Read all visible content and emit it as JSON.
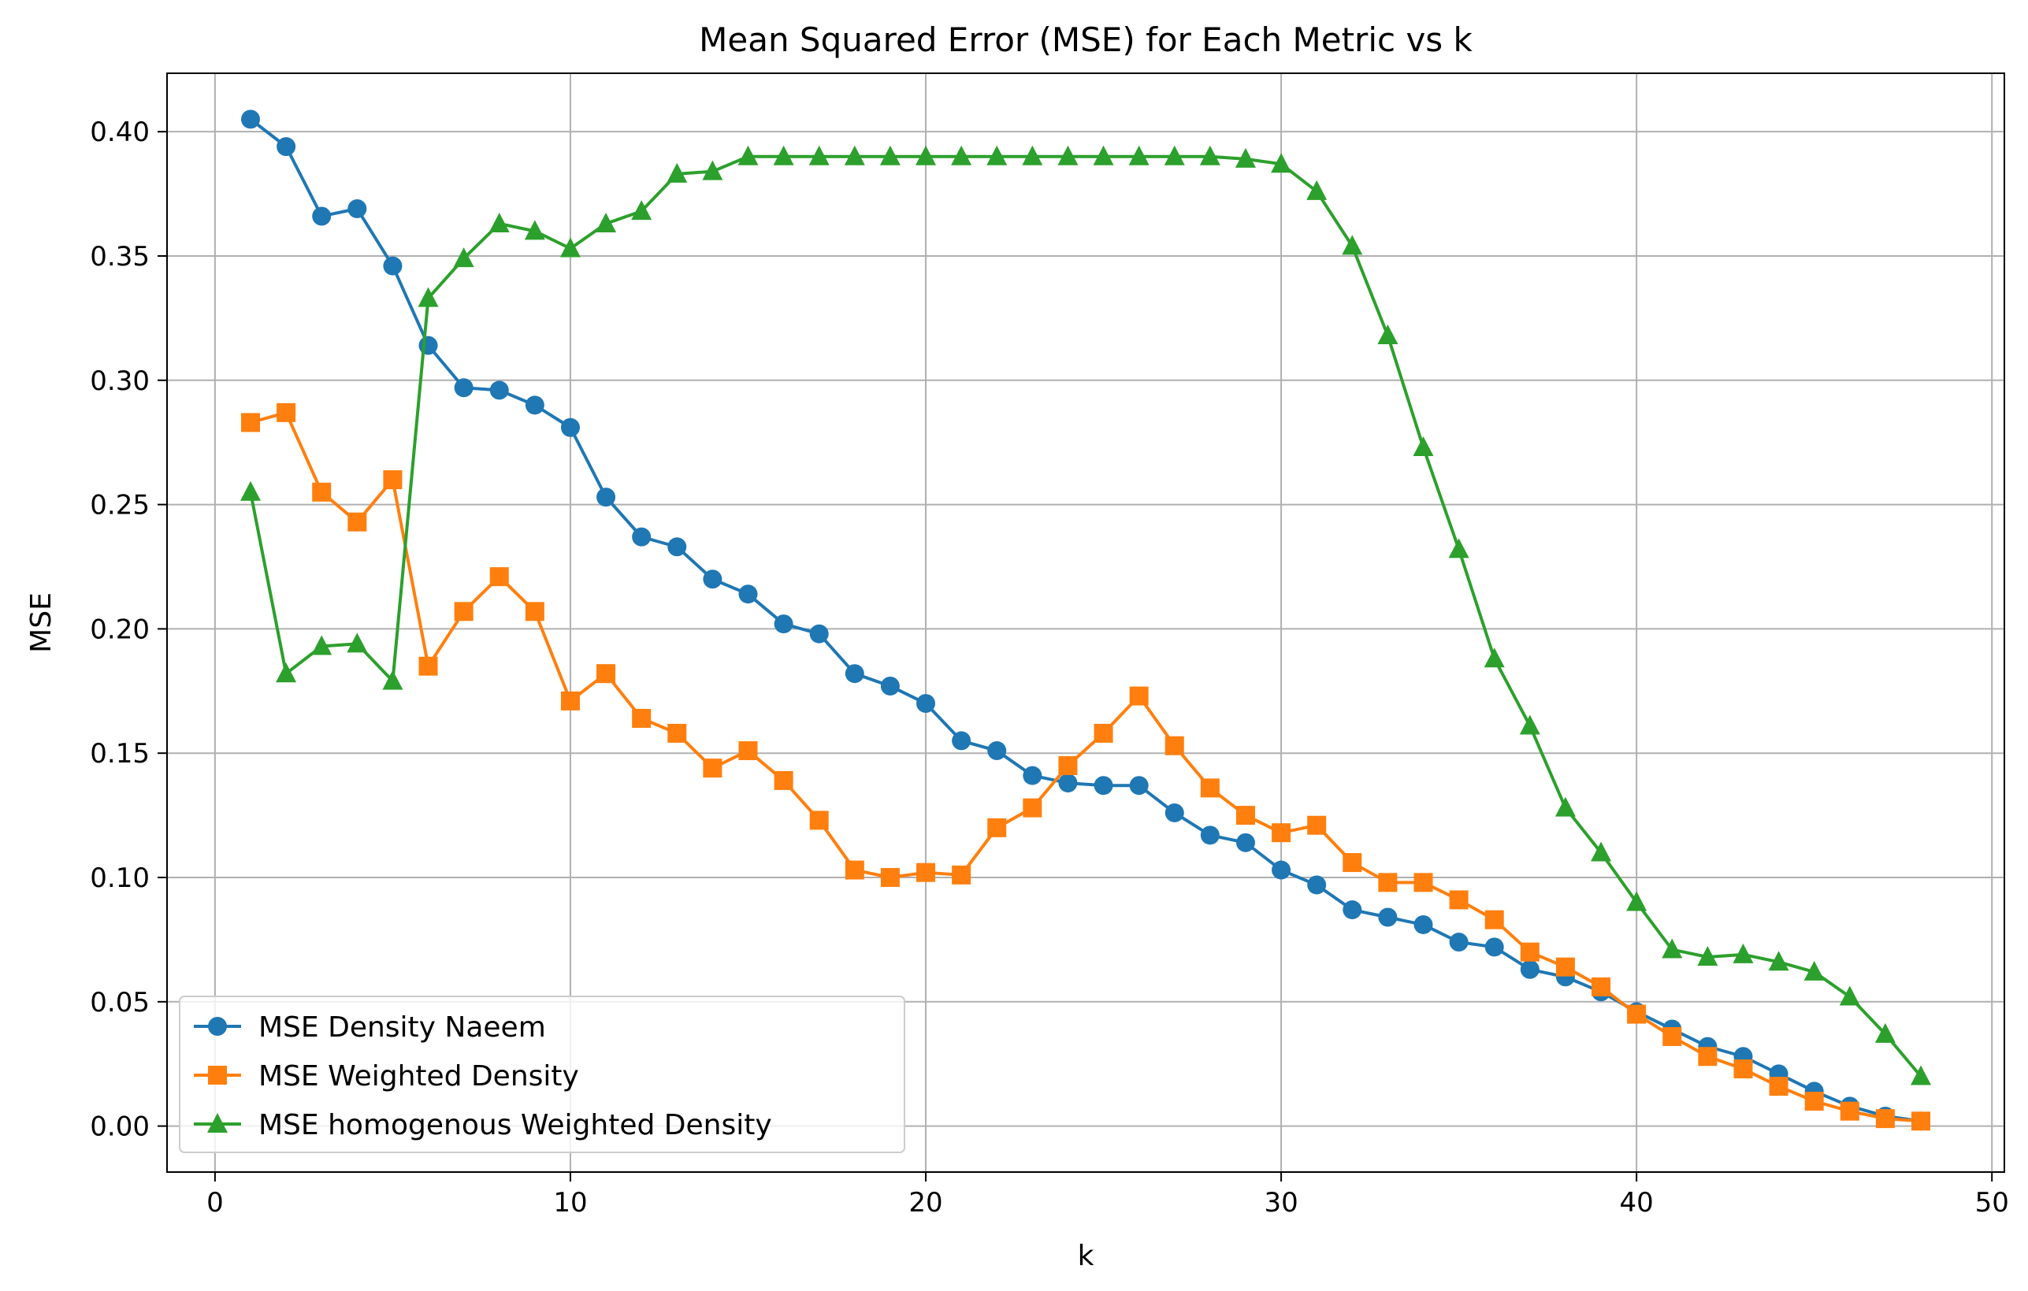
{
  "chart_data": {
    "type": "line",
    "title": "Mean Squared Error (MSE) for Each Metric vs k",
    "xlabel": "k",
    "ylabel": "MSE",
    "xlim": [
      -1.35,
      50.35
    ],
    "ylim": [
      -0.0185,
      0.4235
    ],
    "xticks": [
      0,
      10,
      20,
      30,
      40,
      50
    ],
    "yticks": [
      0.0,
      0.05,
      0.1,
      0.15,
      0.2,
      0.25,
      0.3,
      0.35,
      0.4
    ],
    "xtick_labels": [
      "0",
      "10",
      "20",
      "30",
      "40",
      "50"
    ],
    "ytick_labels": [
      "0.00",
      "0.05",
      "0.10",
      "0.15",
      "0.20",
      "0.25",
      "0.30",
      "0.35",
      "0.40"
    ],
    "grid": true,
    "legend_position": "lower-left",
    "x": [
      1,
      2,
      3,
      4,
      5,
      6,
      7,
      8,
      9,
      10,
      11,
      12,
      13,
      14,
      15,
      16,
      17,
      18,
      19,
      20,
      21,
      22,
      23,
      24,
      25,
      26,
      27,
      28,
      29,
      30,
      31,
      32,
      33,
      34,
      35,
      36,
      37,
      38,
      39,
      40,
      41,
      42,
      43,
      44,
      45,
      46,
      47,
      48
    ],
    "series": [
      {
        "name": "MSE Density Naeem",
        "color": "#1f77b4",
        "marker": "circle",
        "values": [
          0.405,
          0.394,
          0.366,
          0.369,
          0.346,
          0.314,
          0.297,
          0.296,
          0.29,
          0.281,
          0.253,
          0.237,
          0.233,
          0.22,
          0.214,
          0.202,
          0.198,
          0.182,
          0.177,
          0.17,
          0.155,
          0.151,
          0.141,
          0.138,
          0.137,
          0.137,
          0.126,
          0.117,
          0.114,
          0.103,
          0.097,
          0.087,
          0.084,
          0.081,
          0.074,
          0.072,
          0.063,
          0.06,
          0.054,
          0.046,
          0.039,
          0.032,
          0.028,
          0.021,
          0.014,
          0.008,
          0.004,
          0.002
        ]
      },
      {
        "name": "MSE Weighted Density",
        "color": "#ff7f0e",
        "marker": "square",
        "values": [
          0.283,
          0.287,
          0.255,
          0.243,
          0.26,
          0.185,
          0.207,
          0.221,
          0.207,
          0.171,
          0.182,
          0.164,
          0.158,
          0.144,
          0.151,
          0.139,
          0.123,
          0.103,
          0.1,
          0.102,
          0.101,
          0.12,
          0.128,
          0.145,
          0.158,
          0.173,
          0.153,
          0.136,
          0.125,
          0.118,
          0.121,
          0.106,
          0.098,
          0.098,
          0.091,
          0.083,
          0.07,
          0.064,
          0.056,
          0.045,
          0.036,
          0.028,
          0.023,
          0.016,
          0.01,
          0.006,
          0.003,
          0.002
        ]
      },
      {
        "name": "MSE homogenous Weighted Density",
        "color": "#2ca02c",
        "marker": "triangle",
        "values": [
          0.255,
          0.182,
          0.193,
          0.194,
          0.179,
          0.333,
          0.349,
          0.363,
          0.36,
          0.353,
          0.363,
          0.368,
          0.383,
          0.384,
          0.39,
          0.39,
          0.39,
          0.39,
          0.39,
          0.39,
          0.39,
          0.39,
          0.39,
          0.39,
          0.39,
          0.39,
          0.39,
          0.39,
          0.389,
          0.387,
          0.376,
          0.354,
          0.318,
          0.273,
          0.232,
          0.188,
          0.161,
          0.128,
          0.11,
          0.09,
          0.071,
          0.068,
          0.069,
          0.066,
          0.062,
          0.052,
          0.037,
          0.02
        ]
      }
    ]
  }
}
